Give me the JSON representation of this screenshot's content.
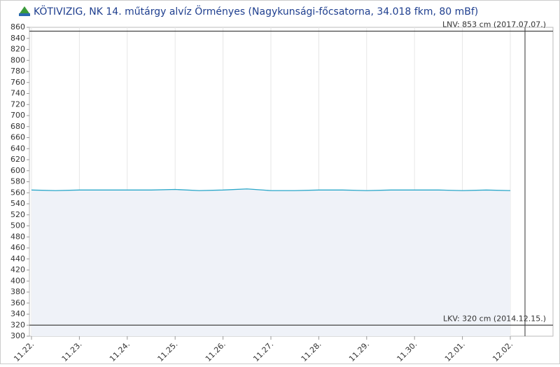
{
  "chart_data": {
    "type": "line",
    "title": "KÖTIVIZIG, NK 14. műtárgy alvíz Örményes (Nagykunsági-főcsatorna, 34.018 fkm, 80 mBf)",
    "categories": [
      "11.22.",
      null,
      "11.23.",
      null,
      "11.24.",
      null,
      "11.25.",
      null,
      "11.26.",
      null,
      "11.27.",
      null,
      "11.28.",
      null,
      "11.29.",
      null,
      "11.30.",
      null,
      "12.01.",
      null,
      "12.02."
    ],
    "series": [
      {
        "color": "#2aa7c9",
        "values": [
          565,
          564,
          565,
          565,
          565,
          565,
          566,
          564,
          565,
          567,
          564,
          564,
          565,
          565,
          564,
          565,
          565,
          565,
          564,
          565,
          564
        ]
      }
    ],
    "ylim": [
      300,
      860
    ],
    "yticks": [
      300,
      320,
      340,
      360,
      380,
      400,
      420,
      440,
      460,
      480,
      500,
      520,
      540,
      560,
      580,
      600,
      620,
      640,
      660,
      680,
      700,
      720,
      740,
      760,
      780,
      800,
      820,
      840,
      860
    ],
    "grid": true,
    "thresholds": [
      {
        "value": 853,
        "label": "LNV: 853 cm (2017.07.07.)"
      },
      {
        "value": 320,
        "label": "LKV: 320 cm (2014.12.15.)"
      }
    ]
  }
}
